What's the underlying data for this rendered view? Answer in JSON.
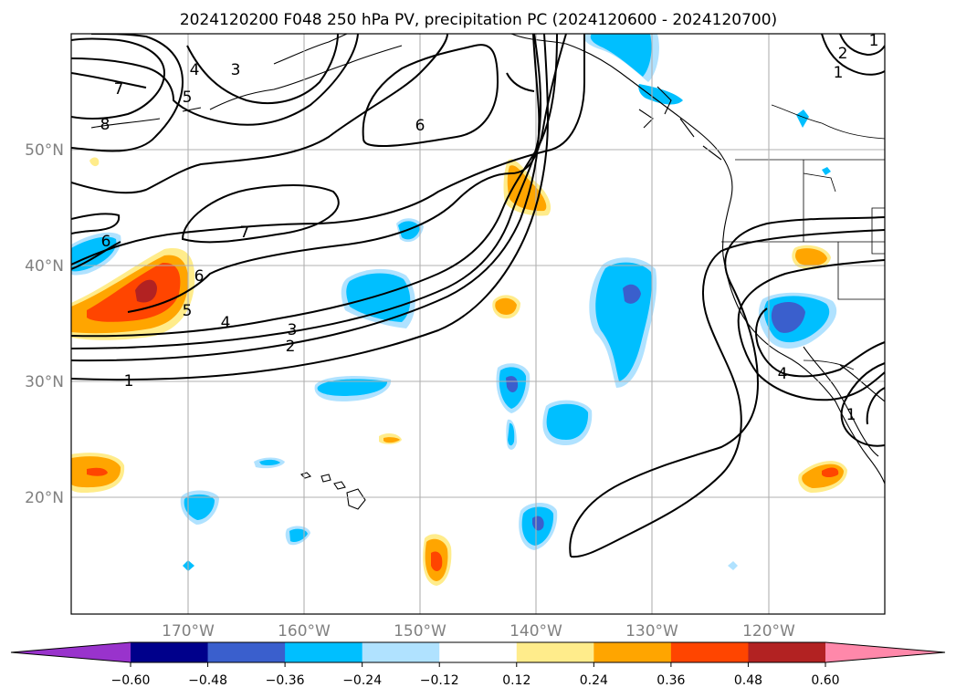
{
  "map": {
    "title": "2024120200 F048 250 hPa PV, precipitation PC (2024120600 - 2024120700)",
    "lon_labels": [
      "170°W",
      "160°W",
      "150°W",
      "140°W",
      "130°W",
      "120°W"
    ],
    "lat_labels": [
      "50°N",
      "40°N",
      "30°N",
      "20°N"
    ],
    "pv_contour_labels": [
      "7",
      "4",
      "3",
      "8",
      "6",
      "5",
      "7",
      "6",
      "6",
      "5",
      "4",
      "3",
      "2",
      "1",
      "2",
      "1",
      "1",
      "4",
      "1"
    ]
  },
  "colorbar": {
    "ticks": [
      "−0.60",
      "−0.48",
      "−0.36",
      "−0.24",
      "−0.12",
      "0.12",
      "0.24",
      "0.36",
      "0.48",
      "0.60"
    ],
    "colors": [
      "#9933cc",
      "#00008b",
      "#3a5fcd",
      "#00bfff",
      "#b0e2ff",
      "#ffffff",
      "#ffec8b",
      "#ffa500",
      "#ff4500",
      "#b22222",
      "#ff88aa"
    ]
  }
}
